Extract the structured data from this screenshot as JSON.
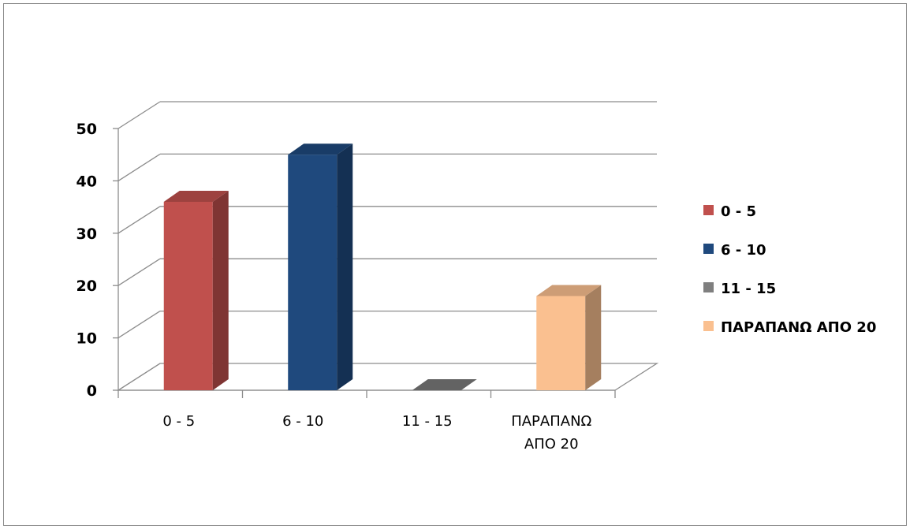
{
  "chart_data": {
    "type": "bar",
    "style": "3d-column",
    "categories": [
      "0 - 5",
      "6 - 10",
      "11 - 15",
      "ΠΑΡΑΠΑΝΩ ΑΠΟ 20"
    ],
    "category_label_lines": [
      [
        "0 - 5"
      ],
      [
        "6 - 10"
      ],
      [
        "11 - 15"
      ],
      [
        "ΠΑΡΑΠΑΝΩ",
        "ΑΠΟ 20"
      ]
    ],
    "values": [
      36,
      45,
      0,
      18
    ],
    "ylim": [
      0,
      50
    ],
    "yticks": [
      0,
      10,
      20,
      30,
      40,
      50
    ],
    "grid": true,
    "legend_position": "right",
    "legend": [
      "0 - 5",
      "6 - 10",
      "11 - 15",
      "ΠΑΡΑΠΑΝΩ ΑΠΟ 20"
    ],
    "colors": [
      "#c0504d",
      "#1f497d",
      "#7f7f7f",
      "#fac090"
    ],
    "title": "",
    "xlabel": "",
    "ylabel": ""
  }
}
